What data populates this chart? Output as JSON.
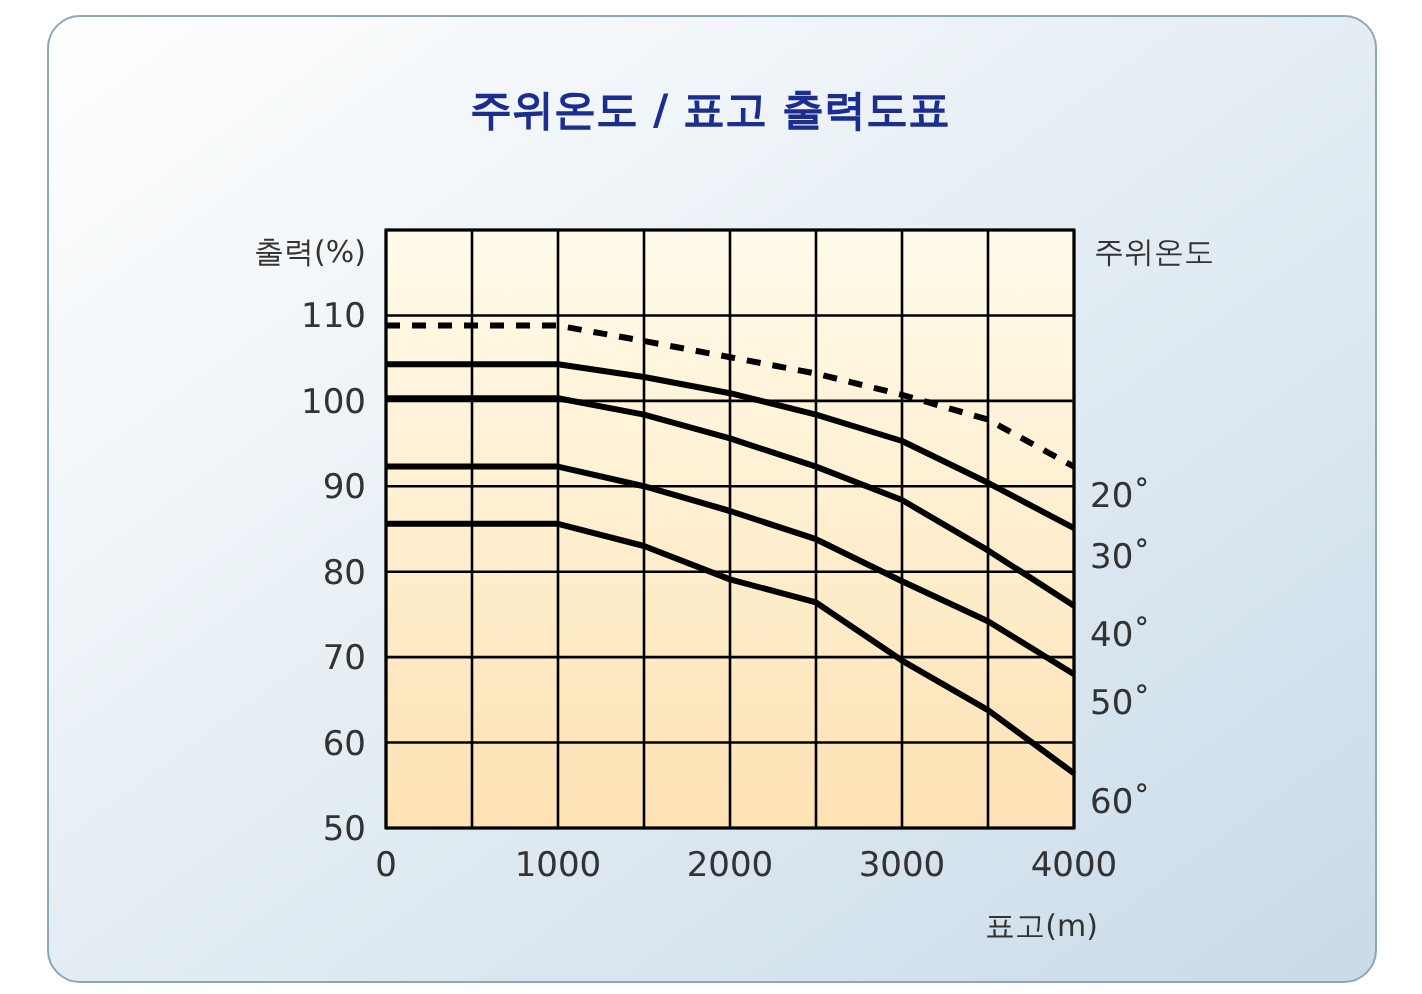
{
  "chart_data": {
    "type": "line",
    "title": "주위온도 / 표고 출력도표",
    "xlabel": "표고(m)",
    "ylabel": "출력(%)",
    "legend_title": "주위온도",
    "x": [
      0,
      1000,
      1500,
      2000,
      2500,
      3000,
      3500,
      4000
    ],
    "series": [
      {
        "name": "20˚",
        "color": "#000000",
        "line_style": "dashed",
        "values": [
          108.8,
          108.8,
          107.0,
          105.1,
          103.2,
          100.7,
          97.8,
          92.3
        ]
      },
      {
        "name": "30˚",
        "color": "#000000",
        "values": [
          104.3,
          104.3,
          102.8,
          100.9,
          98.4,
          95.3,
          90.4,
          85.1
        ]
      },
      {
        "name": "40˚",
        "color": "#000000",
        "values": [
          100.3,
          100.3,
          98.4,
          95.6,
          92.3,
          88.4,
          82.5,
          76.0
        ]
      },
      {
        "name": "50˚",
        "color": "#000000",
        "values": [
          92.3,
          92.3,
          90.0,
          87.1,
          83.8,
          78.9,
          74.2,
          68.0
        ]
      },
      {
        "name": "60˚",
        "color": "#000000",
        "values": [
          85.6,
          85.6,
          83.0,
          79.1,
          76.4,
          69.6,
          63.8,
          56.4
        ]
      }
    ],
    "xlim": [
      0,
      4000
    ],
    "ylim": [
      50,
      120
    ],
    "xticks": [
      0,
      {
        "value": 500,
        "label": null
      },
      1000,
      {
        "value": 1500,
        "label": null
      },
      2000,
      {
        "value": 2500,
        "label": null
      },
      3000,
      {
        "value": 3500,
        "label": null
      },
      4000
    ],
    "yticks": [
      50,
      60,
      70,
      80,
      90,
      100,
      110,
      {
        "value": 120,
        "label": null
      }
    ],
    "grid": true
  }
}
